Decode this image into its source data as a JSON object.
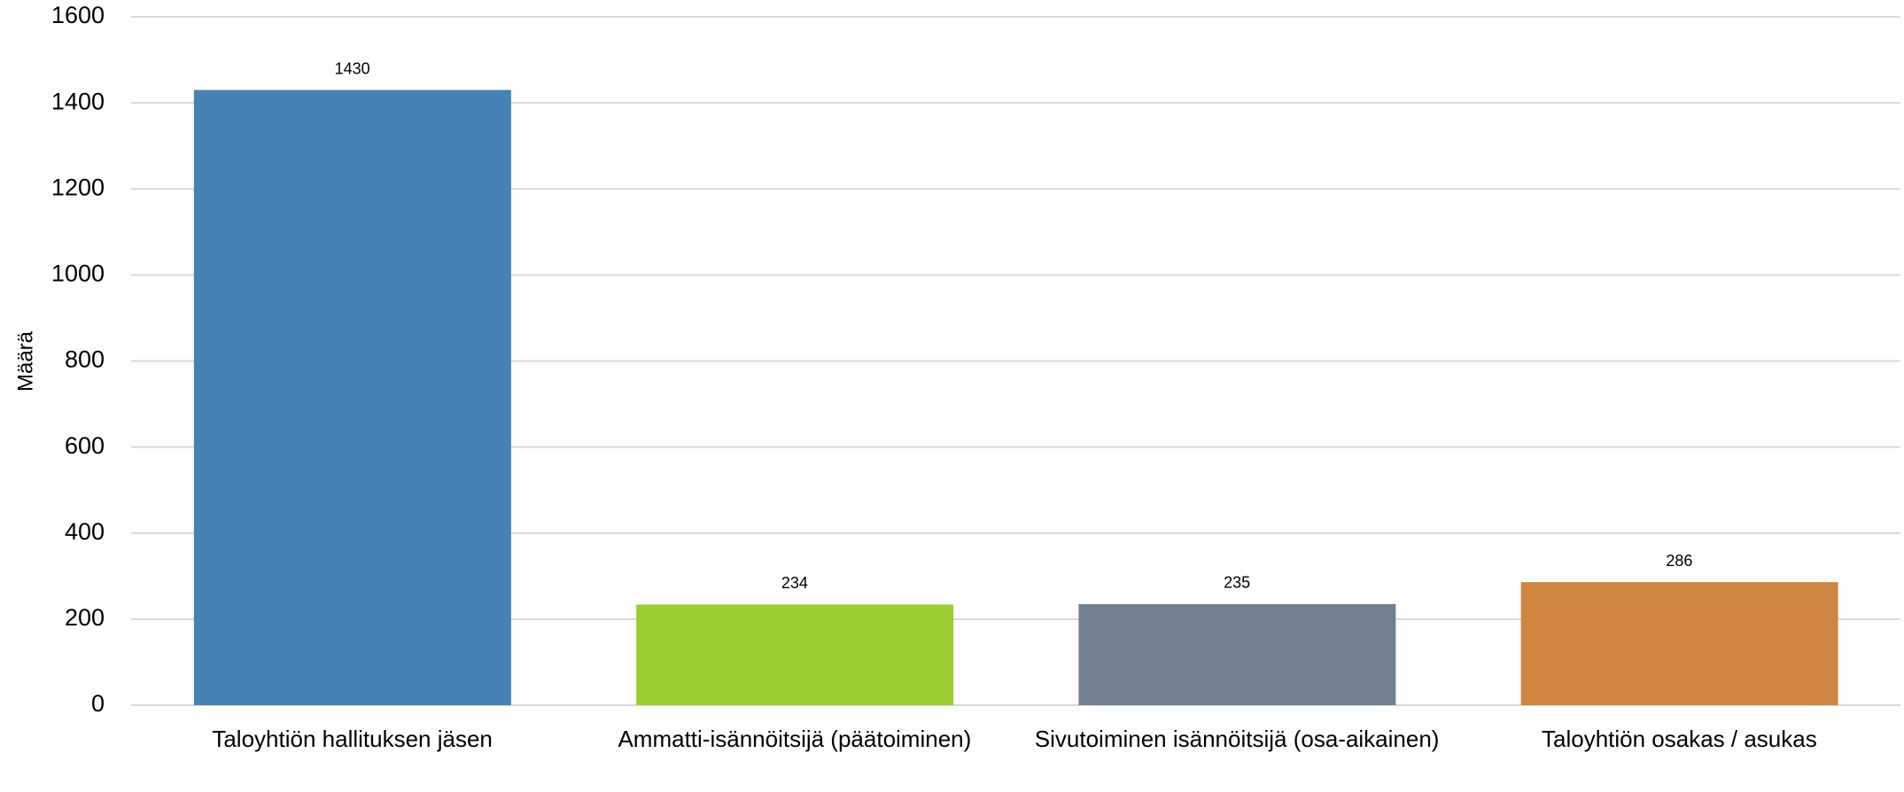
{
  "chart_data": {
    "type": "bar",
    "y_label": "Määrä",
    "categories": [
      "Taloyhtiön hallituksen jäsen",
      "Ammatti-isännöitsijä (päätoiminen)",
      "Sivutoiminen isännöitsijä (osa-aikainen)",
      "Taloyhtiön osakas / asukas"
    ],
    "values": [
      1430,
      234,
      235,
      286
    ],
    "colors": [
      "#4682b4",
      "#9acd32",
      "#708090",
      "#cd853f"
    ],
    "ylim": [
      0,
      1600
    ],
    "yticks": [
      0,
      200,
      400,
      600,
      800,
      1000,
      1200,
      1400,
      1600
    ],
    "grid": true
  }
}
